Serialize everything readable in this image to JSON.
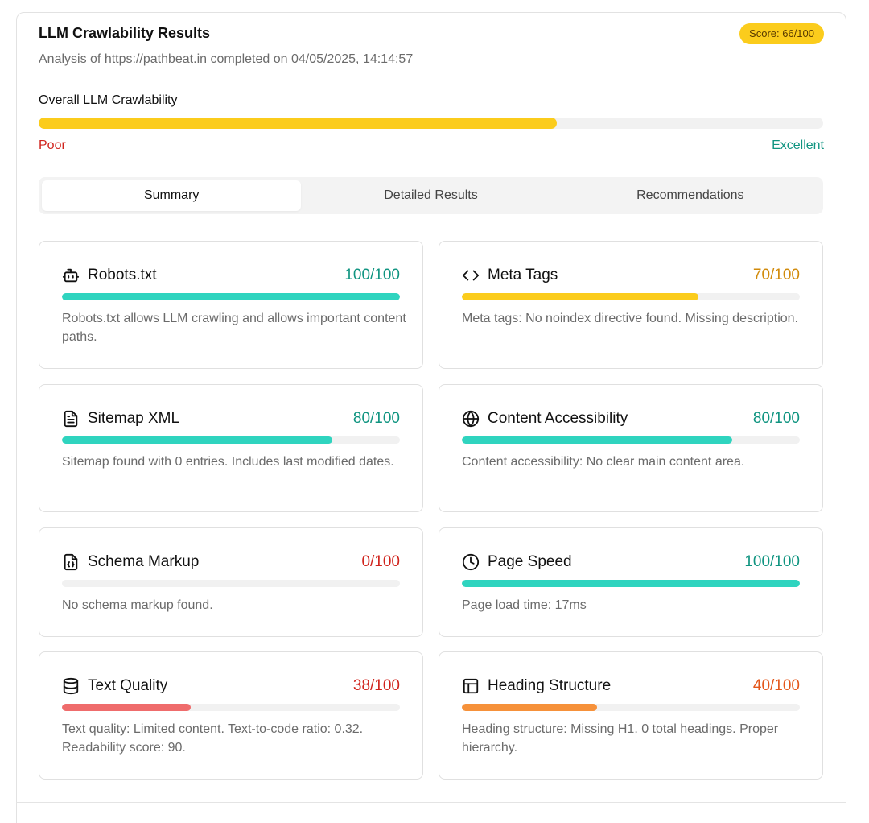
{
  "header": {
    "title": "LLM Crawlability Results",
    "subtitle": "Analysis of https://pathbeat.in completed on 04/05/2025, 14:14:57",
    "score_badge": "Score: 66/100"
  },
  "overall": {
    "label": "Overall LLM Crawlability",
    "value": 66,
    "max": 100,
    "low_label": "Poor",
    "high_label": "Excellent",
    "bar_color": "#fbcc1c"
  },
  "tabs": [
    {
      "label": "Summary",
      "active": true
    },
    {
      "label": "Detailed Results",
      "active": false
    },
    {
      "label": "Recommendations",
      "active": false
    }
  ],
  "cards": [
    {
      "icon": "robot-icon",
      "title": "Robots.txt",
      "score_text": "100/100",
      "value": 100,
      "score_color": "#0f9480",
      "bar_color": "#2fd4bf",
      "desc": "Robots.txt allows LLM crawling and allows important content paths."
    },
    {
      "icon": "code-icon",
      "title": "Meta Tags",
      "score_text": "70/100",
      "value": 70,
      "score_color": "#d18a0a",
      "bar_color": "#fbcc1c",
      "desc": "Meta tags: No noindex directive found. Missing description."
    },
    {
      "icon": "file-text-icon",
      "title": "Sitemap XML",
      "score_text": "80/100",
      "value": 80,
      "score_color": "#0f9480",
      "bar_color": "#2fd4bf",
      "desc": "Sitemap found with 0 entries. Includes last modified dates."
    },
    {
      "icon": "globe-icon",
      "title": "Content Accessibility",
      "score_text": "80/100",
      "value": 80,
      "score_color": "#0f9480",
      "bar_color": "#2fd4bf",
      "desc": "Content accessibility: No clear main content area."
    },
    {
      "icon": "file-json-icon",
      "title": "Schema Markup",
      "score_text": "0/100",
      "value": 0,
      "score_color": "#d0231c",
      "bar_color": "#ef6c6c",
      "desc": "No schema markup found."
    },
    {
      "icon": "clock-icon",
      "title": "Page Speed",
      "score_text": "100/100",
      "value": 100,
      "score_color": "#0f9480",
      "bar_color": "#2fd4bf",
      "desc": "Page load time: 17ms"
    },
    {
      "icon": "database-icon",
      "title": "Text Quality",
      "score_text": "38/100",
      "value": 38,
      "score_color": "#d0231c",
      "bar_color": "#ef6c6c",
      "desc": "Text quality: Limited content. Text-to-code ratio: 0.32. Readability score: 90."
    },
    {
      "icon": "layout-icon",
      "title": "Heading Structure",
      "score_text": "40/100",
      "value": 40,
      "score_color": "#e4571b",
      "bar_color": "#f6913a",
      "desc": "Heading structure: Missing H1. 0 total headings. Proper hierarchy."
    }
  ]
}
